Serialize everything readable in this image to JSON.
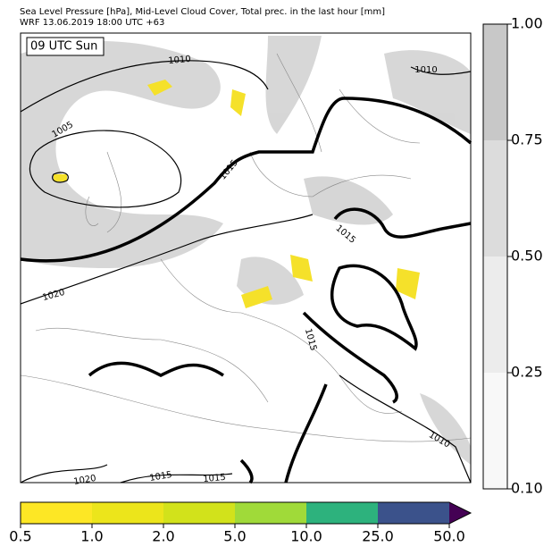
{
  "header": {
    "lines": [
      "Sea Level Pressure [hPa], Mid-Level Cloud Cover, Total prec. in the last hour [mm]",
      "WRF 13.06.2019 18:00 UTC +63"
    ]
  },
  "map": {
    "time_label": "09 UTC Sun",
    "contour_labels": [
      "1010",
      "1010",
      "1005",
      "1015",
      "1015",
      "1020",
      "1015",
      "1010",
      "1020",
      "1015",
      "1015"
    ]
  },
  "cloud_colorbar": {
    "ticks": [
      "1.00",
      "0.75",
      "0.50",
      "0.25",
      "0.10"
    ],
    "colors": [
      "#c8c8c8",
      "#dcdcdc",
      "#ececec",
      "#f8f8f8"
    ]
  },
  "precip_colorbar": {
    "ticks": [
      "0.5",
      "1.0",
      "2.0",
      "5.0",
      "10.0",
      "25.0",
      "50.0"
    ],
    "colors": [
      "#fde725",
      "#ece51b",
      "#d2e21b",
      "#a0da39",
      "#2db27d",
      "#3b528b",
      "#440154"
    ]
  }
}
